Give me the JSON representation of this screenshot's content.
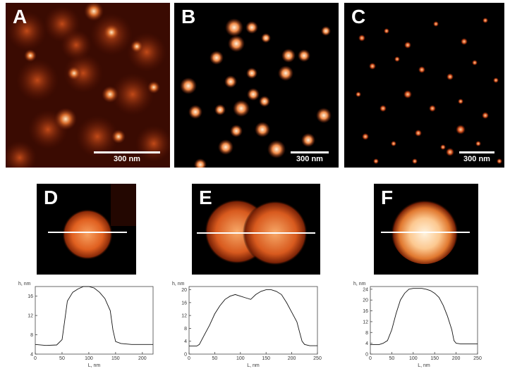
{
  "panels": {
    "A": {
      "letter": "A",
      "scale_label": "300 nm"
    },
    "B": {
      "letter": "B",
      "scale_label": "300 nm"
    },
    "C": {
      "letter": "C",
      "scale_label": "300 nm"
    },
    "D": {
      "letter": "D"
    },
    "E": {
      "letter": "E"
    },
    "F": {
      "letter": "F"
    }
  },
  "colors": {
    "dark": "#000000",
    "mid": "#b53a10",
    "bright": "#ffe6c0"
  },
  "chart_data": [
    {
      "type": "line",
      "panel": "D",
      "ylabel": "h, nm",
      "xlabel": "L, nm",
      "xlim": [
        0,
        220
      ],
      "ylim": [
        4,
        18
      ],
      "xticks": [
        0,
        50,
        100,
        150,
        200
      ],
      "yticks": [
        4,
        8,
        12,
        16
      ],
      "x": [
        0,
        20,
        40,
        50,
        55,
        60,
        70,
        80,
        90,
        100,
        110,
        120,
        130,
        140,
        145,
        150,
        160,
        180,
        200,
        220
      ],
      "y": [
        6,
        5.8,
        5.9,
        7,
        11,
        15,
        16.8,
        17.5,
        18,
        18,
        17.7,
        16.8,
        15.5,
        13,
        9,
        6.6,
        6.2,
        6,
        6,
        6
      ]
    },
    {
      "type": "line",
      "panel": "E",
      "ylabel": "h, nm",
      "xlabel": "L, nm",
      "xlim": [
        0,
        250
      ],
      "ylim": [
        0,
        21
      ],
      "xticks": [
        0,
        50,
        100,
        150,
        200,
        250
      ],
      "yticks": [
        0,
        4,
        8,
        12,
        16,
        20
      ],
      "x": [
        0,
        15,
        20,
        30,
        40,
        50,
        60,
        70,
        80,
        90,
        100,
        110,
        120,
        130,
        140,
        150,
        160,
        170,
        180,
        190,
        200,
        210,
        215,
        220,
        225,
        235,
        250
      ],
      "y": [
        2.5,
        2.5,
        3,
        6,
        9,
        12.5,
        15,
        17,
        18,
        18.5,
        18,
        17.5,
        17,
        18.5,
        19.5,
        20,
        20,
        19.5,
        18.5,
        16,
        13,
        10,
        7,
        4,
        3,
        2.6,
        2.6
      ]
    },
    {
      "type": "line",
      "panel": "F",
      "ylabel": "h, nm",
      "xlabel": "L, nm",
      "xlim": [
        0,
        250
      ],
      "ylim": [
        0,
        25
      ],
      "xticks": [
        0,
        50,
        100,
        150,
        200,
        250
      ],
      "yticks": [
        0,
        4,
        8,
        12,
        16,
        20,
        24
      ],
      "x": [
        0,
        20,
        30,
        40,
        50,
        60,
        70,
        80,
        90,
        100,
        110,
        120,
        130,
        140,
        150,
        160,
        170,
        180,
        190,
        195,
        200,
        210,
        230,
        250
      ],
      "y": [
        3.5,
        3.5,
        4,
        5,
        9,
        15,
        20,
        22.5,
        24,
        24.3,
        24.3,
        24.3,
        24,
        23.5,
        22.5,
        21,
        18,
        14,
        9,
        5,
        4,
        3.8,
        3.8,
        3.8
      ]
    }
  ]
}
